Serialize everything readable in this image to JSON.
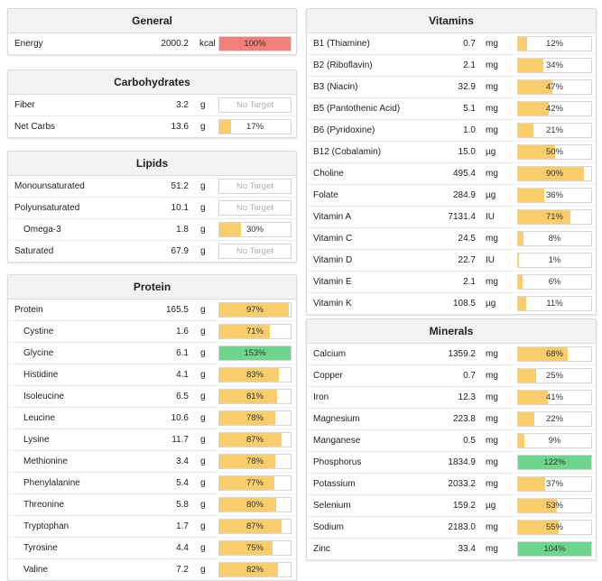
{
  "colors": {
    "yellow": "#f9cd6b",
    "green": "#6dd68a",
    "red": "#f08079"
  },
  "general": {
    "title": "General",
    "rows": [
      {
        "name": "Energy",
        "amount": "2000.2",
        "unit": "kcal",
        "pct": "100%",
        "fill": 1.0,
        "color": "red"
      }
    ]
  },
  "carbohydrates": {
    "title": "Carbohydrates",
    "rows": [
      {
        "name": "Fiber",
        "amount": "3.2",
        "unit": "g",
        "pct": "No Target",
        "fill": 0,
        "color": "none"
      },
      {
        "name": "Net Carbs",
        "amount": "13.6",
        "unit": "g",
        "pct": "17%",
        "fill": 0.17,
        "color": "yellow"
      }
    ]
  },
  "lipids": {
    "title": "Lipids",
    "rows": [
      {
        "name": "Monounsaturated",
        "amount": "51.2",
        "unit": "g",
        "pct": "No Target",
        "fill": 0,
        "color": "none"
      },
      {
        "name": "Polyunsaturated",
        "amount": "10.1",
        "unit": "g",
        "pct": "No Target",
        "fill": 0,
        "color": "none"
      },
      {
        "name": "Omega-3",
        "amount": "1.8",
        "unit": "g",
        "pct": "30%",
        "fill": 0.3,
        "color": "yellow",
        "sub": true
      },
      {
        "name": "Saturated",
        "amount": "67.9",
        "unit": "g",
        "pct": "No Target",
        "fill": 0,
        "color": "none"
      }
    ]
  },
  "protein": {
    "title": "Protein",
    "rows": [
      {
        "name": "Protein",
        "amount": "165.5",
        "unit": "g",
        "pct": "97%",
        "fill": 0.97,
        "color": "yellow"
      },
      {
        "name": "Cystine",
        "amount": "1.6",
        "unit": "g",
        "pct": "71%",
        "fill": 0.71,
        "color": "yellow",
        "sub": true
      },
      {
        "name": "Glycine",
        "amount": "6.1",
        "unit": "g",
        "pct": "153%",
        "fill": 1.0,
        "color": "green",
        "sub": true
      },
      {
        "name": "Histidine",
        "amount": "4.1",
        "unit": "g",
        "pct": "83%",
        "fill": 0.83,
        "color": "yellow",
        "sub": true
      },
      {
        "name": "Isoleucine",
        "amount": "6.5",
        "unit": "g",
        "pct": "81%",
        "fill": 0.81,
        "color": "yellow",
        "sub": true
      },
      {
        "name": "Leucine",
        "amount": "10.6",
        "unit": "g",
        "pct": "78%",
        "fill": 0.78,
        "color": "yellow",
        "sub": true
      },
      {
        "name": "Lysine",
        "amount": "11.7",
        "unit": "g",
        "pct": "87%",
        "fill": 0.87,
        "color": "yellow",
        "sub": true
      },
      {
        "name": "Methionine",
        "amount": "3.4",
        "unit": "g",
        "pct": "78%",
        "fill": 0.78,
        "color": "yellow",
        "sub": true
      },
      {
        "name": "Phenylalanine",
        "amount": "5.4",
        "unit": "g",
        "pct": "77%",
        "fill": 0.77,
        "color": "yellow",
        "sub": true
      },
      {
        "name": "Threonine",
        "amount": "5.8",
        "unit": "g",
        "pct": "80%",
        "fill": 0.8,
        "color": "yellow",
        "sub": true
      },
      {
        "name": "Tryptophan",
        "amount": "1.7",
        "unit": "g",
        "pct": "87%",
        "fill": 0.87,
        "color": "yellow",
        "sub": true
      },
      {
        "name": "Tyrosine",
        "amount": "4.4",
        "unit": "g",
        "pct": "75%",
        "fill": 0.75,
        "color": "yellow",
        "sub": true
      },
      {
        "name": "Valine",
        "amount": "7.2",
        "unit": "g",
        "pct": "82%",
        "fill": 0.82,
        "color": "yellow",
        "sub": true
      }
    ]
  },
  "vitamins": {
    "title": "Vitamins",
    "rows": [
      {
        "name": "B1 (Thiamine)",
        "amount": "0.7",
        "unit": "mg",
        "pct": "12%",
        "fill": 0.12,
        "color": "yellow"
      },
      {
        "name": "B2 (Riboflavin)",
        "amount": "2.1",
        "unit": "mg",
        "pct": "34%",
        "fill": 0.34,
        "color": "yellow"
      },
      {
        "name": "B3 (Niacin)",
        "amount": "32.9",
        "unit": "mg",
        "pct": "47%",
        "fill": 0.47,
        "color": "yellow"
      },
      {
        "name": "B5 (Pantothenic Acid)",
        "amount": "5.1",
        "unit": "mg",
        "pct": "42%",
        "fill": 0.42,
        "color": "yellow"
      },
      {
        "name": "B6 (Pyridoxine)",
        "amount": "1.0",
        "unit": "mg",
        "pct": "21%",
        "fill": 0.21,
        "color": "yellow"
      },
      {
        "name": "B12 (Cobalamin)",
        "amount": "15.0",
        "unit": "µg",
        "pct": "50%",
        "fill": 0.5,
        "color": "yellow"
      },
      {
        "name": "Choline",
        "amount": "495.4",
        "unit": "mg",
        "pct": "90%",
        "fill": 0.9,
        "color": "yellow"
      },
      {
        "name": "Folate",
        "amount": "284.9",
        "unit": "µg",
        "pct": "36%",
        "fill": 0.36,
        "color": "yellow"
      },
      {
        "name": "Vitamin A",
        "amount": "7131.4",
        "unit": "IU",
        "pct": "71%",
        "fill": 0.71,
        "color": "yellow"
      },
      {
        "name": "Vitamin C",
        "amount": "24.5",
        "unit": "mg",
        "pct": "8%",
        "fill": 0.08,
        "color": "yellow"
      },
      {
        "name": "Vitamin D",
        "amount": "22.7",
        "unit": "IU",
        "pct": "1%",
        "fill": 0.01,
        "color": "yellow"
      },
      {
        "name": "Vitamin E",
        "amount": "2.1",
        "unit": "mg",
        "pct": "6%",
        "fill": 0.06,
        "color": "yellow"
      },
      {
        "name": "Vitamin K",
        "amount": "108.5",
        "unit": "µg",
        "pct": "11%",
        "fill": 0.11,
        "color": "yellow"
      }
    ]
  },
  "minerals": {
    "title": "Minerals",
    "rows": [
      {
        "name": "Calcium",
        "amount": "1359.2",
        "unit": "mg",
        "pct": "68%",
        "fill": 0.68,
        "color": "yellow"
      },
      {
        "name": "Copper",
        "amount": "0.7",
        "unit": "mg",
        "pct": "25%",
        "fill": 0.25,
        "color": "yellow"
      },
      {
        "name": "Iron",
        "amount": "12.3",
        "unit": "mg",
        "pct": "41%",
        "fill": 0.41,
        "color": "yellow"
      },
      {
        "name": "Magnesium",
        "amount": "223.8",
        "unit": "mg",
        "pct": "22%",
        "fill": 0.22,
        "color": "yellow"
      },
      {
        "name": "Manganese",
        "amount": "0.5",
        "unit": "mg",
        "pct": "9%",
        "fill": 0.09,
        "color": "yellow"
      },
      {
        "name": "Phosphorus",
        "amount": "1834.9",
        "unit": "mg",
        "pct": "122%",
        "fill": 1.0,
        "color": "green"
      },
      {
        "name": "Potassium",
        "amount": "2033.2",
        "unit": "mg",
        "pct": "37%",
        "fill": 0.37,
        "color": "yellow"
      },
      {
        "name": "Selenium",
        "amount": "159.2",
        "unit": "µg",
        "pct": "53%",
        "fill": 0.53,
        "color": "yellow"
      },
      {
        "name": "Sodium",
        "amount": "2183.0",
        "unit": "mg",
        "pct": "55%",
        "fill": 0.55,
        "color": "yellow"
      },
      {
        "name": "Zinc",
        "amount": "33.4",
        "unit": "mg",
        "pct": "104%",
        "fill": 1.0,
        "color": "green"
      }
    ]
  }
}
